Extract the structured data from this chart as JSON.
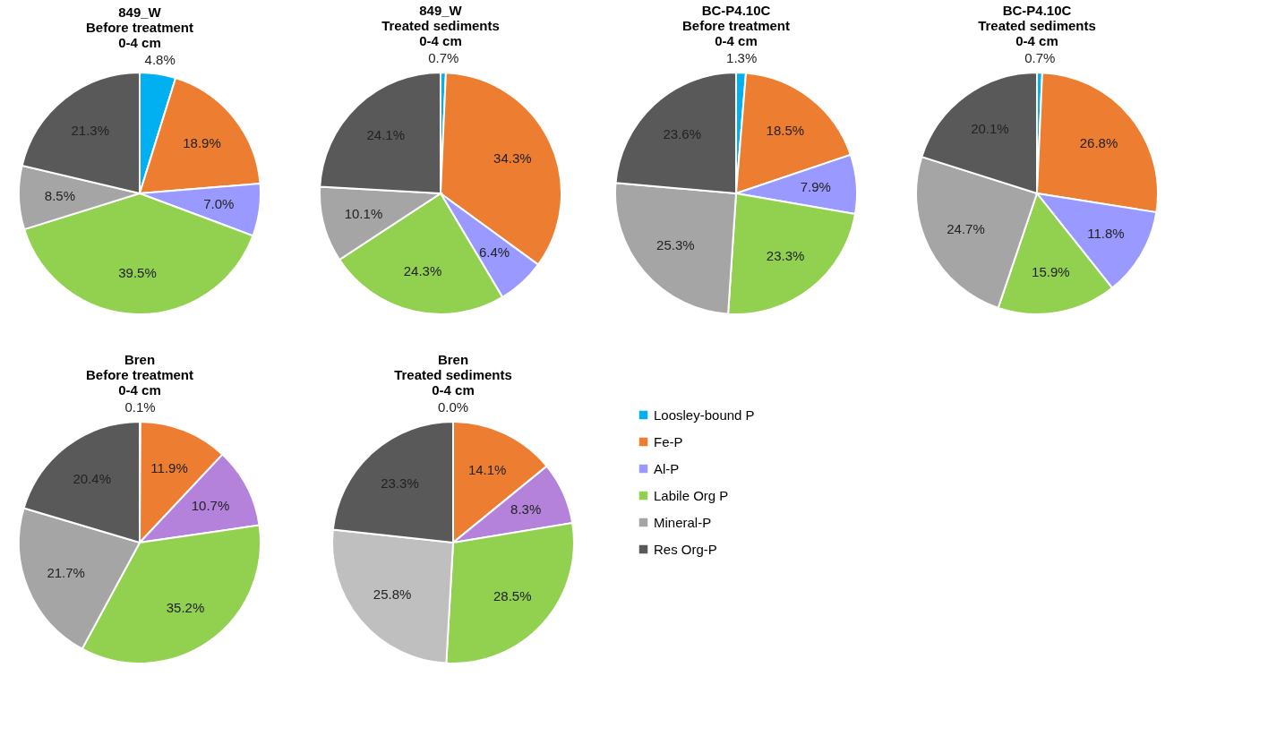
{
  "chart_data": [
    {
      "type": "pie",
      "title": "849_W\nBefore treatment\n0-4 cm",
      "categories": [
        "Loosley-bound P",
        "Fe-P",
        "Al-P",
        "Labile Org P",
        "Mineral-P",
        "Res Org-P"
      ],
      "values": [
        4.8,
        18.9,
        7.0,
        39.5,
        8.5,
        21.3
      ],
      "value_labels": [
        "4.8%",
        "18.9%",
        "7.0%",
        "39.5%",
        "8.5%",
        "21.3%"
      ],
      "colors": [
        "#00b0f0",
        "#ed7d31",
        "#9999ff",
        "#92d050",
        "#a5a5a5",
        "#595959"
      ],
      "legend": "right"
    },
    {
      "type": "pie",
      "title": "849_W\nTreated sediments\n0-4 cm",
      "categories": [
        null,
        null,
        null,
        null,
        null,
        null
      ],
      "values": [
        0.7,
        34.3,
        6.4,
        24.3,
        10.1,
        24.1
      ],
      "value_labels": [
        "0.7%",
        "34.3%",
        "6.4%",
        "24.3%",
        "10.1%",
        "24.1%"
      ],
      "colors": [
        "#00b0f0",
        "#ed7d31",
        "#9999ff",
        "#92d050",
        "#a5a5a5",
        "#595959"
      ]
    },
    {
      "type": "pie",
      "title": "BC-P4.10C\nBefore treatment\n0-4 cm",
      "categories": [
        null,
        null,
        null,
        null,
        null,
        null
      ],
      "values": [
        1.3,
        18.5,
        7.9,
        23.3,
        25.3,
        23.6
      ],
      "value_labels": [
        "1.3%",
        "18.5%",
        "7.9%",
        "23.3%",
        "25.3%",
        "23.6%"
      ],
      "colors": [
        "#00b0f0",
        "#ed7d31",
        "#9999ff",
        "#92d050",
        "#a5a5a5",
        "#595959"
      ]
    },
    {
      "type": "pie",
      "title": "BC-P4.10C\nTreated sediments\n0-4 cm",
      "categories": [
        null,
        null,
        null,
        null,
        null,
        null
      ],
      "values": [
        0.7,
        26.8,
        11.8,
        15.9,
        24.7,
        20.1
      ],
      "value_labels": [
        "0.7%",
        "26.8%",
        "11.8%",
        "15.9%",
        "24.7%",
        "20.1%"
      ],
      "colors": [
        "#00b0f0",
        "#ed7d31",
        "#9999ff",
        "#92d050",
        "#a5a5a5",
        "#595959"
      ]
    },
    {
      "type": "pie",
      "title": "Bren\nBefore treatment\n0-4 cm",
      "categories": [
        null,
        null,
        null,
        null,
        null,
        null
      ],
      "values": [
        0.1,
        11.9,
        10.7,
        35.2,
        21.7,
        20.4
      ],
      "value_labels": [
        "0.1%",
        "11.9%",
        "10.7%",
        "35.2%",
        "21.7%",
        "20.4%"
      ],
      "colors": [
        "#00b0f0",
        "#ed7d31",
        "#b482da",
        "#92d050",
        "#a5a5a5",
        "#595959"
      ]
    },
    {
      "type": "pie",
      "title": "Bren\nTreated sediments\n0-4 cm",
      "categories": [
        null,
        null,
        null,
        null,
        null,
        null
      ],
      "values": [
        0.0,
        14.1,
        8.3,
        28.5,
        25.8,
        23.3
      ],
      "value_labels": [
        "0.0%",
        "14.1%",
        "8.3%",
        "28.5%",
        "25.8%",
        "23.3%"
      ],
      "colors": [
        "#00b0f0",
        "#ed7d31",
        "#b482da",
        "#92d050",
        "#bfbfbf",
        "#595959"
      ]
    }
  ]
}
